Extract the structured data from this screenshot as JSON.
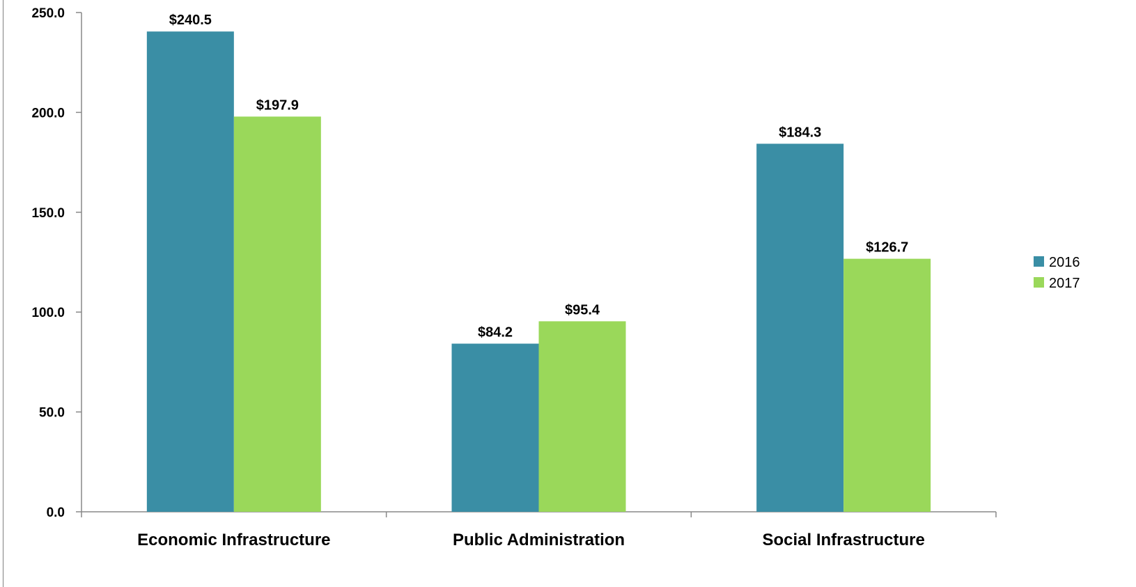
{
  "colors": {
    "series_2016": "#3a8ea5",
    "series_2017": "#9ad85a",
    "axis": "#888888",
    "frame": "#7f7f7f"
  },
  "chart_data": {
    "type": "bar",
    "title": "",
    "xlabel": "",
    "ylabel": "",
    "categories": [
      "Economic Infrastructure",
      "Public Administration",
      "Social Infrastructure"
    ],
    "series": [
      {
        "name": "2016",
        "values": [
          240.5,
          84.2,
          184.3
        ],
        "labels": [
          "$240.5",
          "$84.2",
          "$184.3"
        ]
      },
      {
        "name": "2017",
        "values": [
          197.9,
          95.4,
          126.7
        ],
        "labels": [
          "$197.9",
          "$95.4",
          "$126.7"
        ]
      }
    ],
    "ylim": [
      0,
      250
    ],
    "yticks": [
      "0.0",
      "50.0",
      "100.0",
      "150.0",
      "200.0",
      "250.0"
    ],
    "grid": false,
    "legend_position": "right"
  }
}
